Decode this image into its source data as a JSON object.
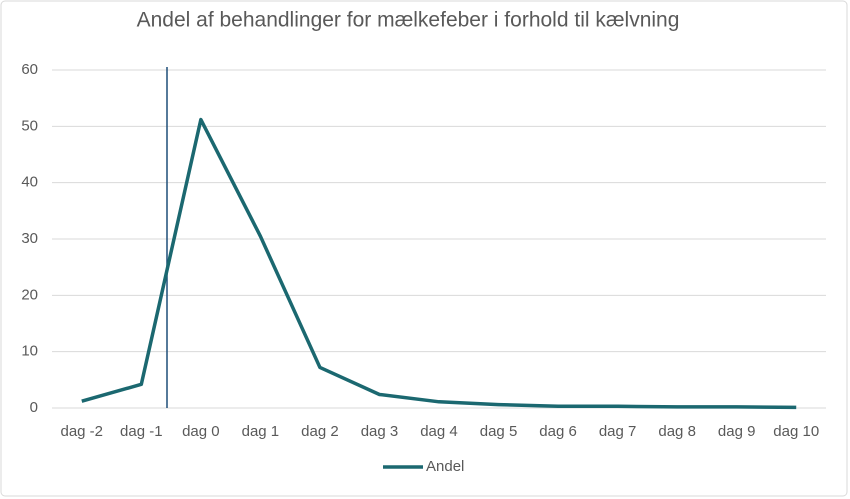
{
  "chart_data": {
    "type": "line",
    "title": "Andel af behandlinger for mælkefeber i forhold til kælvning",
    "categories": [
      "dag -2",
      "dag -1",
      "dag 0",
      "dag 1",
      "dag 2",
      "dag 3",
      "dag 4",
      "dag 5",
      "dag 6",
      "dag 7",
      "dag 8",
      "dag 9",
      "dag 10"
    ],
    "series": [
      {
        "name": "Andel",
        "color": "#1b6870",
        "values": [
          1.2,
          4.2,
          51.2,
          30.5,
          7.2,
          2.4,
          1.1,
          0.6,
          0.3,
          0.3,
          0.2,
          0.2,
          0.1
        ]
      }
    ],
    "ylim": [
      0,
      60
    ],
    "yticks": [
      0,
      10,
      20,
      30,
      40,
      50,
      60
    ],
    "grid": true,
    "legend": "bottom"
  }
}
